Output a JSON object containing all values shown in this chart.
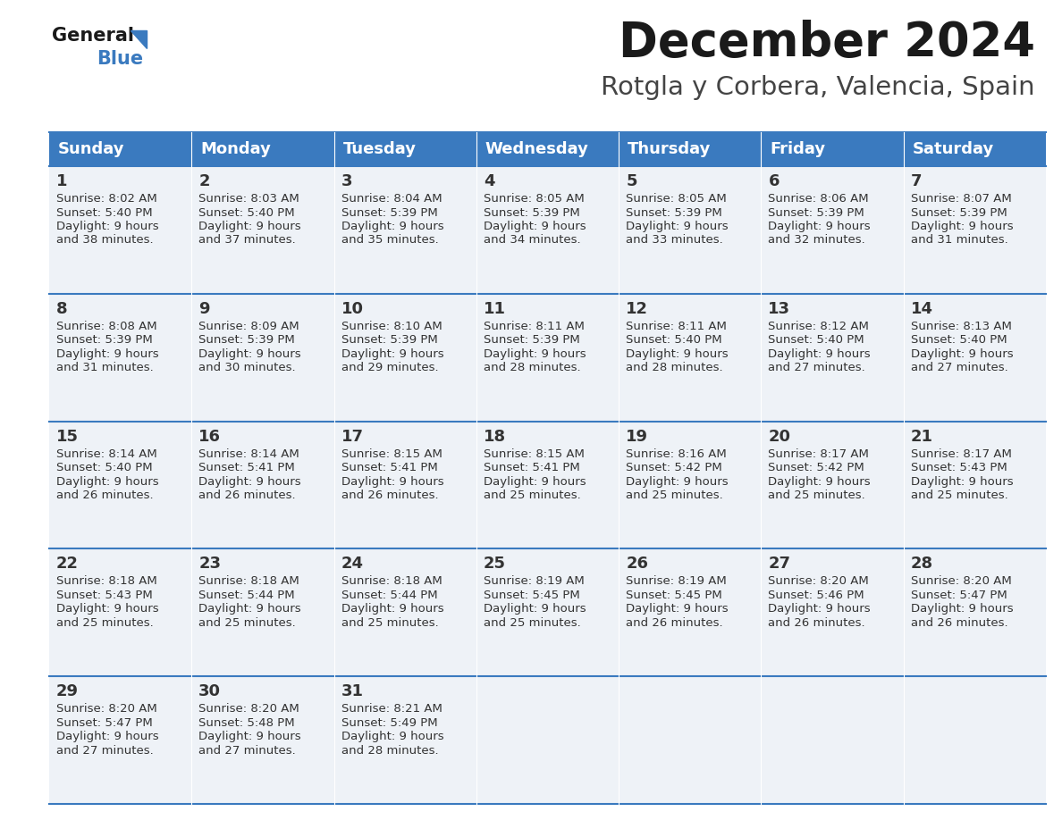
{
  "title": "December 2024",
  "subtitle": "Rotgla y Corbera, Valencia, Spain",
  "header_color": "#3a7abf",
  "header_text_color": "#ffffff",
  "cell_bg_even": "#eef2f7",
  "cell_bg_odd": "#eef2f7",
  "border_color": "#3a7abf",
  "text_color": "#333333",
  "day_headers": [
    "Sunday",
    "Monday",
    "Tuesday",
    "Wednesday",
    "Thursday",
    "Friday",
    "Saturday"
  ],
  "weeks": [
    [
      {
        "day": "1",
        "sunrise": "8:02 AM",
        "sunset": "5:40 PM",
        "daylight": "9 hours",
        "daylight2": "and 38 minutes."
      },
      {
        "day": "2",
        "sunrise": "8:03 AM",
        "sunset": "5:40 PM",
        "daylight": "9 hours",
        "daylight2": "and 37 minutes."
      },
      {
        "day": "3",
        "sunrise": "8:04 AM",
        "sunset": "5:39 PM",
        "daylight": "9 hours",
        "daylight2": "and 35 minutes."
      },
      {
        "day": "4",
        "sunrise": "8:05 AM",
        "sunset": "5:39 PM",
        "daylight": "9 hours",
        "daylight2": "and 34 minutes."
      },
      {
        "day": "5",
        "sunrise": "8:05 AM",
        "sunset": "5:39 PM",
        "daylight": "9 hours",
        "daylight2": "and 33 minutes."
      },
      {
        "day": "6",
        "sunrise": "8:06 AM",
        "sunset": "5:39 PM",
        "daylight": "9 hours",
        "daylight2": "and 32 minutes."
      },
      {
        "day": "7",
        "sunrise": "8:07 AM",
        "sunset": "5:39 PM",
        "daylight": "9 hours",
        "daylight2": "and 31 minutes."
      }
    ],
    [
      {
        "day": "8",
        "sunrise": "8:08 AM",
        "sunset": "5:39 PM",
        "daylight": "9 hours",
        "daylight2": "and 31 minutes."
      },
      {
        "day": "9",
        "sunrise": "8:09 AM",
        "sunset": "5:39 PM",
        "daylight": "9 hours",
        "daylight2": "and 30 minutes."
      },
      {
        "day": "10",
        "sunrise": "8:10 AM",
        "sunset": "5:39 PM",
        "daylight": "9 hours",
        "daylight2": "and 29 minutes."
      },
      {
        "day": "11",
        "sunrise": "8:11 AM",
        "sunset": "5:39 PM",
        "daylight": "9 hours",
        "daylight2": "and 28 minutes."
      },
      {
        "day": "12",
        "sunrise": "8:11 AM",
        "sunset": "5:40 PM",
        "daylight": "9 hours",
        "daylight2": "and 28 minutes."
      },
      {
        "day": "13",
        "sunrise": "8:12 AM",
        "sunset": "5:40 PM",
        "daylight": "9 hours",
        "daylight2": "and 27 minutes."
      },
      {
        "day": "14",
        "sunrise": "8:13 AM",
        "sunset": "5:40 PM",
        "daylight": "9 hours",
        "daylight2": "and 27 minutes."
      }
    ],
    [
      {
        "day": "15",
        "sunrise": "8:14 AM",
        "sunset": "5:40 PM",
        "daylight": "9 hours",
        "daylight2": "and 26 minutes."
      },
      {
        "day": "16",
        "sunrise": "8:14 AM",
        "sunset": "5:41 PM",
        "daylight": "9 hours",
        "daylight2": "and 26 minutes."
      },
      {
        "day": "17",
        "sunrise": "8:15 AM",
        "sunset": "5:41 PM",
        "daylight": "9 hours",
        "daylight2": "and 26 minutes."
      },
      {
        "day": "18",
        "sunrise": "8:15 AM",
        "sunset": "5:41 PM",
        "daylight": "9 hours",
        "daylight2": "and 25 minutes."
      },
      {
        "day": "19",
        "sunrise": "8:16 AM",
        "sunset": "5:42 PM",
        "daylight": "9 hours",
        "daylight2": "and 25 minutes."
      },
      {
        "day": "20",
        "sunrise": "8:17 AM",
        "sunset": "5:42 PM",
        "daylight": "9 hours",
        "daylight2": "and 25 minutes."
      },
      {
        "day": "21",
        "sunrise": "8:17 AM",
        "sunset": "5:43 PM",
        "daylight": "9 hours",
        "daylight2": "and 25 minutes."
      }
    ],
    [
      {
        "day": "22",
        "sunrise": "8:18 AM",
        "sunset": "5:43 PM",
        "daylight": "9 hours",
        "daylight2": "and 25 minutes."
      },
      {
        "day": "23",
        "sunrise": "8:18 AM",
        "sunset": "5:44 PM",
        "daylight": "9 hours",
        "daylight2": "and 25 minutes."
      },
      {
        "day": "24",
        "sunrise": "8:18 AM",
        "sunset": "5:44 PM",
        "daylight": "9 hours",
        "daylight2": "and 25 minutes."
      },
      {
        "day": "25",
        "sunrise": "8:19 AM",
        "sunset": "5:45 PM",
        "daylight": "9 hours",
        "daylight2": "and 25 minutes."
      },
      {
        "day": "26",
        "sunrise": "8:19 AM",
        "sunset": "5:45 PM",
        "daylight": "9 hours",
        "daylight2": "and 26 minutes."
      },
      {
        "day": "27",
        "sunrise": "8:20 AM",
        "sunset": "5:46 PM",
        "daylight": "9 hours",
        "daylight2": "and 26 minutes."
      },
      {
        "day": "28",
        "sunrise": "8:20 AM",
        "sunset": "5:47 PM",
        "daylight": "9 hours",
        "daylight2": "and 26 minutes."
      }
    ],
    [
      {
        "day": "29",
        "sunrise": "8:20 AM",
        "sunset": "5:47 PM",
        "daylight": "9 hours",
        "daylight2": "and 27 minutes."
      },
      {
        "day": "30",
        "sunrise": "8:20 AM",
        "sunset": "5:48 PM",
        "daylight": "9 hours",
        "daylight2": "and 27 minutes."
      },
      {
        "day": "31",
        "sunrise": "8:21 AM",
        "sunset": "5:49 PM",
        "daylight": "9 hours",
        "daylight2": "and 28 minutes."
      },
      null,
      null,
      null,
      null
    ]
  ],
  "fig_width": 11.88,
  "fig_height": 9.18,
  "dpi": 100
}
